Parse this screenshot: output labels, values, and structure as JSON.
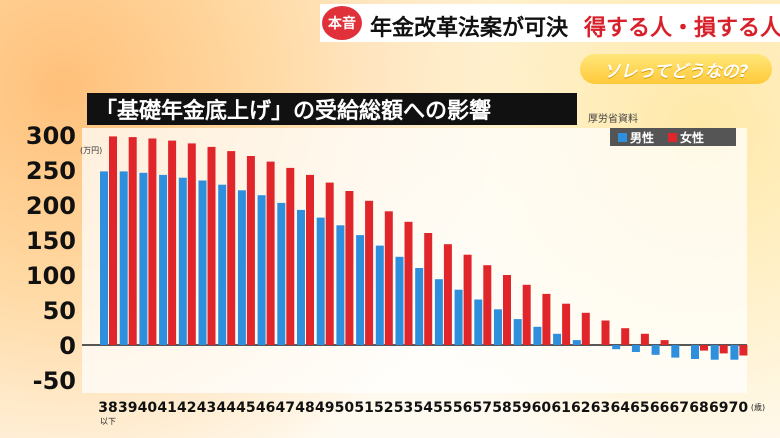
{
  "header": {
    "badge": "本音",
    "headline": "年金改革法案が可決",
    "headline_red": "得する人・損する人",
    "subtitle": "ソレってどうなの?"
  },
  "colors": {
    "male": "#2e8fdc",
    "female": "#e0262a",
    "badge": "#e0303a"
  },
  "chart_data": {
    "type": "bar",
    "title": "「基礎年金底上げ」の受給総額への影響",
    "source": "厚労省資料",
    "ylabel": "(万円)",
    "xlabel": "(歳)",
    "x_sublabel": "以下",
    "ylim": [
      -60,
      300
    ],
    "yticks": [
      "300",
      "250",
      "200",
      "150",
      "100",
      "50",
      "0",
      "-50"
    ],
    "legend": {
      "position": "top-right",
      "male": "男性",
      "female": "女性"
    },
    "categories": [
      "38",
      "39",
      "40",
      "41",
      "42",
      "43",
      "44",
      "45",
      "46",
      "47",
      "48",
      "49",
      "50",
      "51",
      "52",
      "53",
      "54",
      "55",
      "56",
      "57",
      "58",
      "59",
      "60",
      "61",
      "62",
      "63",
      "64",
      "65",
      "66",
      "67",
      "68",
      "69",
      "70"
    ],
    "series": [
      {
        "name": "男性",
        "values": [
          248,
          248,
          246,
          243,
          239,
          235,
          229,
          221,
          214,
          203,
          193,
          182,
          171,
          157,
          142,
          126,
          110,
          94,
          79,
          65,
          51,
          37,
          26,
          16,
          7,
          0,
          -6,
          -10,
          -14,
          -18,
          -20,
          -21,
          -21
        ]
      },
      {
        "name": "女性",
        "values": [
          298,
          297,
          295,
          292,
          288,
          283,
          277,
          270,
          262,
          253,
          243,
          232,
          220,
          206,
          191,
          176,
          160,
          144,
          129,
          114,
          100,
          86,
          73,
          59,
          46,
          35,
          24,
          16,
          7,
          0,
          -8,
          -12,
          -15
        ]
      }
    ]
  }
}
